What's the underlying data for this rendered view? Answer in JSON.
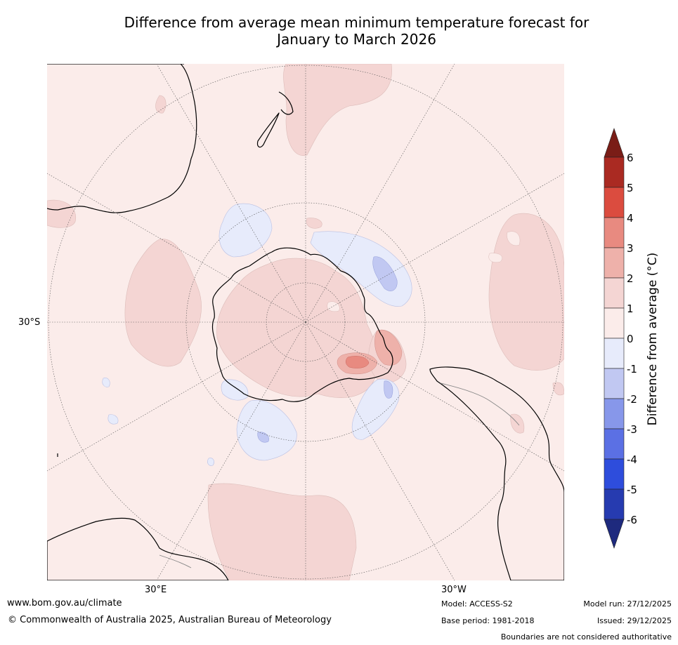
{
  "title": {
    "line1": "Difference from average mean minimum temperature forecast for",
    "line2": "January to March 2026"
  },
  "map": {
    "projection": "south polar stereographic",
    "lat_label": "30°S",
    "lon_labels": {
      "east": "30°E",
      "west": "30°W"
    }
  },
  "colorbar": {
    "title": "Difference from average (°C)",
    "ticks": [
      "6",
      "5",
      "4",
      "3",
      "2",
      "1",
      "0",
      "-1",
      "-2",
      "-3",
      "-4",
      "-5",
      "-6"
    ],
    "colors": {
      "above_6": "#7a1d17",
      "5_to_6": "#aa2a22",
      "4_to_5": "#db4c3f",
      "3_to_4": "#e88a80",
      "2_to_3": "#eeb1aa",
      "1_to_2": "#f4d5d3",
      "0_to_1": "#fbecea",
      "m1_to_0": "#e7ebfb",
      "m2_to_m1": "#c1c8f2",
      "m3_to_m2": "#8797ea",
      "m4_to_m3": "#5b70e4",
      "m5_to_m4": "#2e4ddc",
      "m6_to_m5": "#263bb0",
      "below_m6": "#1e2a7e"
    }
  },
  "footer": {
    "url": "www.bom.gov.au/climate",
    "copyright": "© Commonwealth of Australia 2025, Australian Bureau of Meteorology",
    "model": "Model: ACCESS-S2",
    "base_period": "Base period: 1981-2018",
    "model_run": "Model run: 27/12/2025",
    "issued": "Issued: 29/12/2025",
    "disclaimer": "Boundaries are not considered authoritative"
  }
}
